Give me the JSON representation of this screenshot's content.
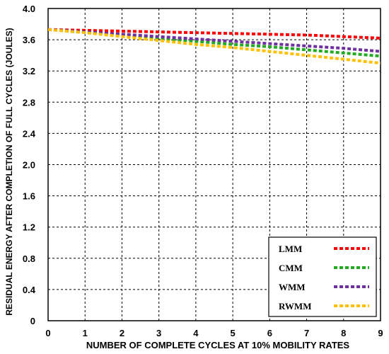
{
  "chart_data": {
    "type": "line",
    "xlabel": "NUMBER OF COMPLETE CYCLES AT 10% MOBILITY RATES",
    "ylabel": "RESIDUAL ENERGY AFTER COMPLETION OF FULL CYCLES (JOULES)",
    "x": [
      0,
      1,
      2,
      3,
      4,
      5,
      6,
      7,
      8,
      9
    ],
    "xlim": [
      0,
      9
    ],
    "ylim": [
      0,
      4.0
    ],
    "x_ticks": [
      "0",
      "1",
      "2",
      "3",
      "4",
      "5",
      "6",
      "7",
      "8",
      "9"
    ],
    "y_ticks": [
      "0",
      "0.4",
      "0.8",
      "1.2",
      "1.6",
      "2.0",
      "2.4",
      "2.8",
      "3.2",
      "3.6",
      "4.0"
    ],
    "grid": true,
    "legend_position": "bottom-right",
    "series": [
      {
        "name": "LMM",
        "color": "#ff0000",
        "values": [
          3.73,
          3.72,
          3.71,
          3.7,
          3.69,
          3.68,
          3.67,
          3.66,
          3.64,
          3.62
        ]
      },
      {
        "name": "CMM",
        "color": "#22aa22",
        "values": [
          3.73,
          3.7,
          3.66,
          3.62,
          3.58,
          3.54,
          3.51,
          3.47,
          3.43,
          3.39
        ]
      },
      {
        "name": "WMM",
        "color": "#7030a0",
        "values": [
          3.73,
          3.7,
          3.67,
          3.64,
          3.61,
          3.58,
          3.55,
          3.52,
          3.49,
          3.45
        ]
      },
      {
        "name": "RWMM",
        "color": "#ffc000",
        "values": [
          3.73,
          3.69,
          3.64,
          3.59,
          3.54,
          3.5,
          3.45,
          3.4,
          3.35,
          3.3
        ]
      }
    ]
  }
}
